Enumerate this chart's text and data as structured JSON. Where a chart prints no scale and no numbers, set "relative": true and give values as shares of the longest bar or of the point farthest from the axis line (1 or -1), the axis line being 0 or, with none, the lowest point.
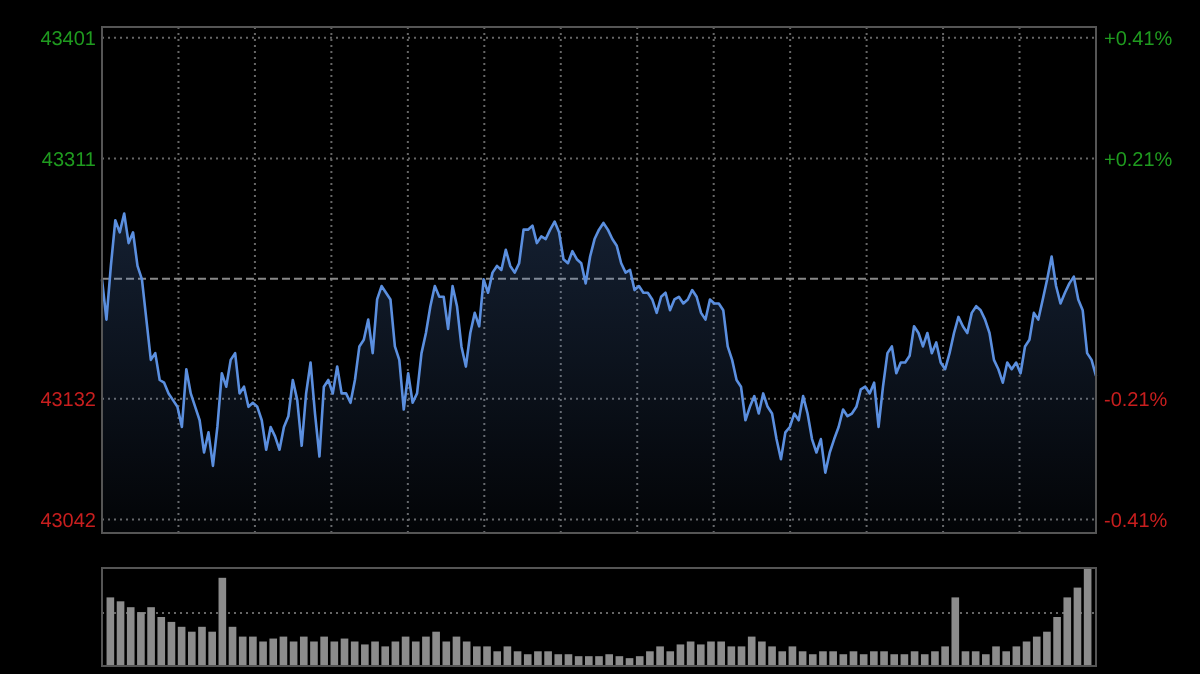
{
  "chart_data": [
    {
      "type": "area",
      "categories": [
        null,
        null,
        null,
        null,
        null,
        null,
        null,
        null,
        null,
        null,
        null,
        null,
        null,
        null,
        null,
        null,
        null,
        null,
        null,
        null,
        null,
        null,
        null,
        null,
        null,
        null,
        null,
        null,
        null,
        null,
        null,
        null,
        null,
        null,
        null,
        null,
        null,
        null,
        null,
        null,
        null,
        null,
        null,
        null,
        null,
        null,
        null,
        null,
        null,
        null,
        null,
        null,
        null,
        null,
        null,
        null,
        null,
        null,
        null,
        null,
        null,
        null,
        null,
        null,
        null,
        null,
        null,
        null,
        null,
        null,
        null,
        null,
        null,
        null,
        null,
        null,
        null,
        null,
        null,
        null,
        null,
        null,
        null,
        null,
        null,
        null,
        null,
        null,
        null,
        null,
        null,
        null,
        null,
        null,
        null,
        null,
        null,
        null,
        null,
        null,
        null,
        null,
        null,
        null,
        null,
        null,
        null,
        null,
        null,
        null,
        null,
        null,
        null,
        null,
        null,
        null,
        null,
        null,
        null,
        null,
        null,
        null,
        null,
        null,
        null,
        null,
        null,
        null,
        null,
        null,
        null,
        null,
        null,
        null,
        null,
        null,
        null,
        null,
        null,
        null,
        null,
        null,
        null,
        null,
        null,
        null,
        null,
        null,
        null,
        null,
        null,
        null,
        null,
        null,
        null,
        null,
        null,
        null,
        null,
        null,
        null,
        null,
        null,
        null,
        null,
        null,
        null,
        null,
        null,
        null,
        null,
        null,
        null,
        null,
        null,
        null,
        null,
        null,
        null,
        null,
        null,
        null,
        null,
        null,
        null,
        null,
        null,
        null,
        null,
        null,
        null,
        null,
        null,
        null,
        null,
        null,
        null,
        null,
        null,
        null,
        null,
        null,
        null,
        null,
        null,
        null,
        null,
        null,
        null,
        null,
        null,
        null,
        null,
        null,
        null,
        null,
        null,
        null,
        null,
        null,
        null,
        null,
        null,
        null,
        null
      ],
      "series": [
        {
          "color": "#5b8fdf",
          "values": [
            43221,
            43191,
            43231,
            43265,
            43256,
            43270,
            43248,
            43256,
            43231,
            43221,
            43191,
            43161,
            43166,
            43146,
            43144,
            43136,
            43131,
            43126,
            43111,
            43154,
            43136,
            43126,
            43116,
            43092,
            43107,
            43082,
            43111,
            43151,
            43141,
            43161,
            43166,
            43136,
            43141,
            43126,
            43129,
            43126,
            43116,
            43094,
            43111,
            43104,
            43094,
            43111,
            43119,
            43146,
            43131,
            43097,
            43136,
            43159,
            43121,
            43089,
            43141,
            43146,
            43136,
            43156,
            43136,
            43136,
            43129,
            43146,
            43171,
            43176,
            43191,
            43166,
            43206,
            43216,
            43211,
            43206,
            43171,
            43161,
            43124,
            43151,
            43129,
            43136,
            43166,
            43181,
            43201,
            43216,
            43208,
            43208,
            43184,
            43216,
            43201,
            43171,
            43156,
            43181,
            43196,
            43186,
            43221,
            43211,
            43226,
            43231,
            43228,
            43243,
            43231,
            43226,
            43233,
            43258,
            43258,
            43261,
            43248,
            43253,
            43251,
            43258,
            43264,
            43256,
            43236,
            43233,
            43242,
            43236,
            43233,
            43218,
            43238,
            43251,
            43258,
            43263,
            43258,
            43251,
            43246,
            43233,
            43226,
            43228,
            43213,
            43216,
            43211,
            43211,
            43206,
            43196,
            43208,
            43211,
            43198,
            43206,
            43208,
            43203,
            43206,
            43213,
            43208,
            43196,
            43191,
            43206,
            43203,
            43203,
            43198,
            43171,
            43161,
            43146,
            43141,
            43116,
            43126,
            43134,
            43121,
            43136,
            43126,
            43121,
            43102,
            43087,
            43107,
            43111,
            43121,
            43116,
            43134,
            43121,
            43102,
            43092,
            43102,
            43077,
            43092,
            43102,
            43111,
            43124,
            43119,
            43121,
            43126,
            43139,
            43141,
            43136,
            43144,
            43111,
            43141,
            43166,
            43171,
            43151,
            43159,
            43159,
            43164,
            43186,
            43181,
            43171,
            43181,
            43166,
            43174,
            43159,
            43154,
            43166,
            43181,
            43193,
            43186,
            43181,
            43196,
            43201,
            43198,
            43191,
            43181,
            43161,
            43154,
            43144,
            43159,
            43154,
            43159,
            43151,
            43171,
            43176,
            43196,
            43191,
            43206,
            43221,
            43238,
            43216,
            43203,
            43211,
            43218,
            43223,
            43206,
            43198,
            43166,
            43161,
            43149
          ]
        }
      ],
      "ylim": [
        43032,
        43409
      ],
      "yticks": [
        43042,
        43132,
        43311,
        43401
      ],
      "y2lim": [
        -0.438,
        0.434
      ],
      "y2ticks": [
        {
          "value": -0.415,
          "label": "-0.41%"
        },
        {
          "value": -0.207,
          "label": "-0.21%"
        },
        {
          "value": 0.207,
          "label": "+0.21%"
        },
        {
          "value": 0.415,
          "label": "+0.41%"
        }
      ],
      "ref_lines": [
        {
          "axis": "y",
          "value": 43221.5,
          "line_style": "dashed"
        }
      ],
      "grid": true
    },
    {
      "type": "bar",
      "relative": true,
      "color": "#8c8c8c",
      "ref_lines": [
        {
          "axis": "y",
          "value": 0.54,
          "line_style": "dotted"
        }
      ],
      "categories": [
        null,
        null,
        null,
        null,
        null,
        null,
        null,
        null,
        null,
        null,
        null,
        null,
        null,
        null,
        null,
        null,
        null,
        null,
        null,
        null,
        null,
        null,
        null,
        null,
        null,
        null,
        null,
        null,
        null,
        null,
        null,
        null,
        null,
        null,
        null,
        null,
        null,
        null,
        null,
        null,
        null,
        null,
        null,
        null,
        null,
        null,
        null,
        null,
        null,
        null,
        null,
        null,
        null,
        null,
        null,
        null,
        null,
        null,
        null,
        null,
        null,
        null,
        null,
        null,
        null,
        null,
        null,
        null,
        null,
        null,
        null,
        null,
        null,
        null,
        null,
        null,
        null,
        null,
        null,
        null,
        null,
        null,
        null,
        null,
        null,
        null,
        null,
        null,
        null,
        null,
        null,
        null,
        null,
        null,
        null,
        null,
        null
      ],
      "values": [
        0.7,
        0.66,
        0.6,
        0.55,
        0.6,
        0.5,
        0.45,
        0.4,
        0.35,
        0.4,
        0.35,
        0.9,
        0.4,
        0.3,
        0.3,
        0.25,
        0.28,
        0.3,
        0.25,
        0.3,
        0.25,
        0.3,
        0.25,
        0.28,
        0.25,
        0.22,
        0.25,
        0.2,
        0.25,
        0.3,
        0.25,
        0.3,
        0.35,
        0.25,
        0.3,
        0.25,
        0.2,
        0.2,
        0.15,
        0.2,
        0.15,
        0.12,
        0.15,
        0.15,
        0.12,
        0.12,
        0.1,
        0.1,
        0.1,
        0.12,
        0.1,
        0.08,
        0.1,
        0.15,
        0.2,
        0.15,
        0.22,
        0.25,
        0.22,
        0.25,
        0.25,
        0.2,
        0.2,
        0.3,
        0.25,
        0.2,
        0.15,
        0.2,
        0.15,
        0.12,
        0.15,
        0.15,
        0.12,
        0.15,
        0.12,
        0.15,
        0.15,
        0.12,
        0.12,
        0.15,
        0.12,
        0.15,
        0.2,
        0.7,
        0.15,
        0.15,
        0.12,
        0.2,
        0.15,
        0.2,
        0.25,
        0.3,
        0.35,
        0.5,
        0.7,
        0.8,
        1.0
      ]
    }
  ]
}
